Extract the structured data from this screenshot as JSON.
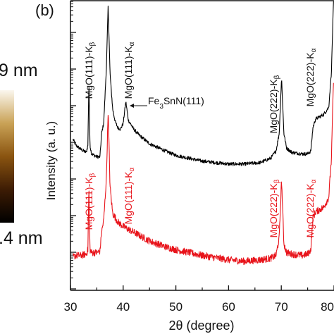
{
  "figure": {
    "panel_label": "(b)",
    "colorbar": {
      "top_label": "9 nm",
      "bottom_label": ".4 nm"
    }
  },
  "colors": {
    "black_trace": "#000000",
    "red_trace": "#e8141b",
    "axis": "#111111"
  },
  "chart_data": {
    "type": "line",
    "title": "",
    "xlabel": "2θ (degree)",
    "ylabel": "Intensity (a. u.)",
    "xlim": [
      30,
      80
    ],
    "xticks": [
      "30",
      "40",
      "50",
      "60",
      "70",
      "80"
    ],
    "y_scale": "log",
    "y_tick_labels_shown": false,
    "grid": false,
    "series": [
      {
        "color": "#000000",
        "points": [
          [
            30.5,
            0.52
          ],
          [
            31,
            0.5
          ],
          [
            32,
            0.485
          ],
          [
            33,
            0.475
          ],
          [
            33.3,
            0.5
          ],
          [
            33.5,
            0.72
          ],
          [
            33.7,
            0.5
          ],
          [
            34,
            0.47
          ],
          [
            35,
            0.46
          ],
          [
            35.6,
            0.46
          ],
          [
            35.9,
            0.54
          ],
          [
            36.3,
            0.575
          ],
          [
            36.8,
            0.76
          ],
          [
            37.15,
            0.98
          ],
          [
            37.5,
            0.75
          ],
          [
            38,
            0.625
          ],
          [
            38.5,
            0.58
          ],
          [
            39,
            0.56
          ],
          [
            39.5,
            0.555
          ],
          [
            40,
            0.575
          ],
          [
            40.5,
            0.65
          ],
          [
            41,
            0.585
          ],
          [
            42,
            0.555
          ],
          [
            43,
            0.535
          ],
          [
            45,
            0.505
          ],
          [
            48,
            0.48
          ],
          [
            50,
            0.465
          ],
          [
            55,
            0.445
          ],
          [
            60,
            0.435
          ],
          [
            63,
            0.435
          ],
          [
            66,
            0.44
          ],
          [
            68,
            0.455
          ],
          [
            69,
            0.48
          ],
          [
            69.6,
            0.54
          ],
          [
            70.05,
            0.73
          ],
          [
            70.5,
            0.54
          ],
          [
            71,
            0.49
          ],
          [
            72,
            0.475
          ],
          [
            74,
            0.47
          ],
          [
            75,
            0.47
          ],
          [
            75.6,
            0.48
          ],
          [
            76,
            0.56
          ],
          [
            76.5,
            0.59
          ],
          [
            77,
            0.595
          ],
          [
            78,
            0.605
          ],
          [
            79,
            0.63
          ],
          [
            79.5,
            0.75
          ],
          [
            79.9,
            0.99
          ]
        ]
      },
      {
        "color": "#e8141b",
        "points": [
          [
            30.5,
            0.115
          ],
          [
            31,
            0.12
          ],
          [
            32,
            0.12
          ],
          [
            33,
            0.125
          ],
          [
            33.3,
            0.14
          ],
          [
            33.5,
            0.36
          ],
          [
            33.7,
            0.14
          ],
          [
            34,
            0.13
          ],
          [
            35,
            0.13
          ],
          [
            35.6,
            0.135
          ],
          [
            35.9,
            0.2
          ],
          [
            36.3,
            0.24
          ],
          [
            36.8,
            0.38
          ],
          [
            37.15,
            0.62
          ],
          [
            37.5,
            0.36
          ],
          [
            38,
            0.265
          ],
          [
            39,
            0.235
          ],
          [
            40,
            0.22
          ],
          [
            42,
            0.2
          ],
          [
            45,
            0.17
          ],
          [
            48,
            0.15
          ],
          [
            50,
            0.14
          ],
          [
            55,
            0.12
          ],
          [
            60,
            0.105
          ],
          [
            63,
            0.1
          ],
          [
            66,
            0.105
          ],
          [
            68,
            0.11
          ],
          [
            69,
            0.12
          ],
          [
            69.6,
            0.18
          ],
          [
            70.05,
            0.38
          ],
          [
            70.5,
            0.16
          ],
          [
            71,
            0.13
          ],
          [
            72,
            0.125
          ],
          [
            74,
            0.12
          ],
          [
            75,
            0.125
          ],
          [
            75.6,
            0.14
          ],
          [
            76,
            0.25
          ],
          [
            76.5,
            0.27
          ],
          [
            77,
            0.275
          ],
          [
            78,
            0.285
          ],
          [
            79,
            0.32
          ],
          [
            79.5,
            0.45
          ],
          [
            79.9,
            0.72
          ]
        ]
      }
    ],
    "annotations": [
      {
        "text": "MgO(111)-Kβ",
        "color": "#111111"
      },
      {
        "text": "MgO(111)-Kα",
        "color": "#111111"
      },
      {
        "text": "Fe3SnN(111)",
        "color": "#111111"
      },
      {
        "text": "MgO(222)-Kβ",
        "color": "#111111"
      },
      {
        "text": "MgO(222)-Kα",
        "color": "#111111"
      },
      {
        "text": "MgO(111)-Kβ",
        "color": "#e8141b"
      },
      {
        "text": "MgO(111)-Kα",
        "color": "#e8141b"
      },
      {
        "text": "MgO(222)-Kβ",
        "color": "#e8141b"
      },
      {
        "text": "MgO(222)-Kα",
        "color": "#e8141b"
      }
    ]
  }
}
